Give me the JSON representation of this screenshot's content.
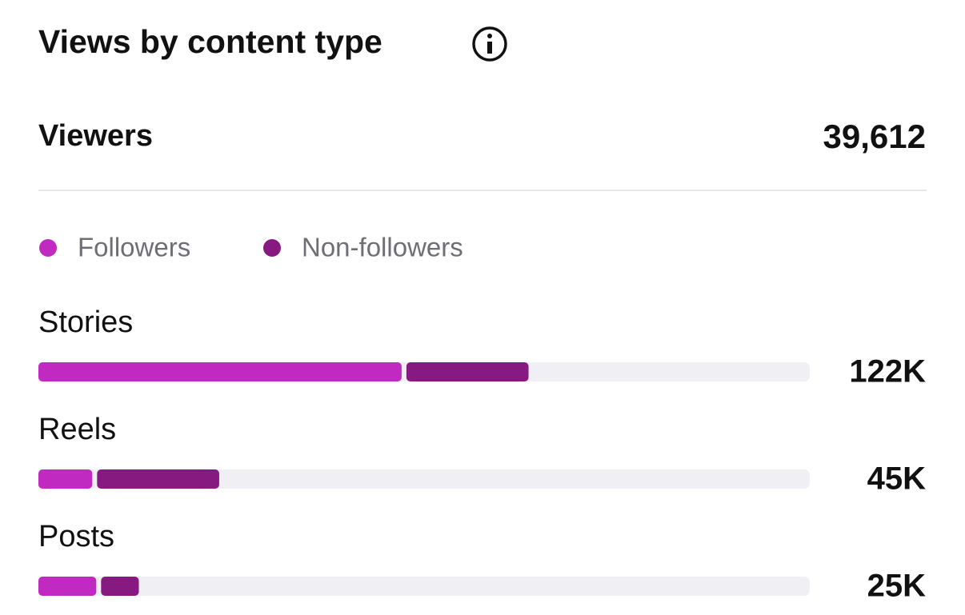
{
  "header": {
    "title": "Views by content type"
  },
  "summary": {
    "label": "Viewers",
    "value": "39,612"
  },
  "chart_data": {
    "type": "bar",
    "orientation": "horizontal",
    "stacked": true,
    "categories": [
      "Stories",
      "Reels",
      "Posts"
    ],
    "series": [
      {
        "name": "Followers",
        "color": "#c02ac0",
        "values": [
          91000,
          14000,
          15000
        ]
      },
      {
        "name": "Non-followers",
        "color": "#861a80",
        "values": [
          31000,
          31000,
          10000
        ]
      }
    ],
    "totals": [
      122000,
      45000,
      25000
    ],
    "total_labels": [
      "122K",
      "45K",
      "25K"
    ],
    "xlim": [
      0,
      192000
    ]
  }
}
